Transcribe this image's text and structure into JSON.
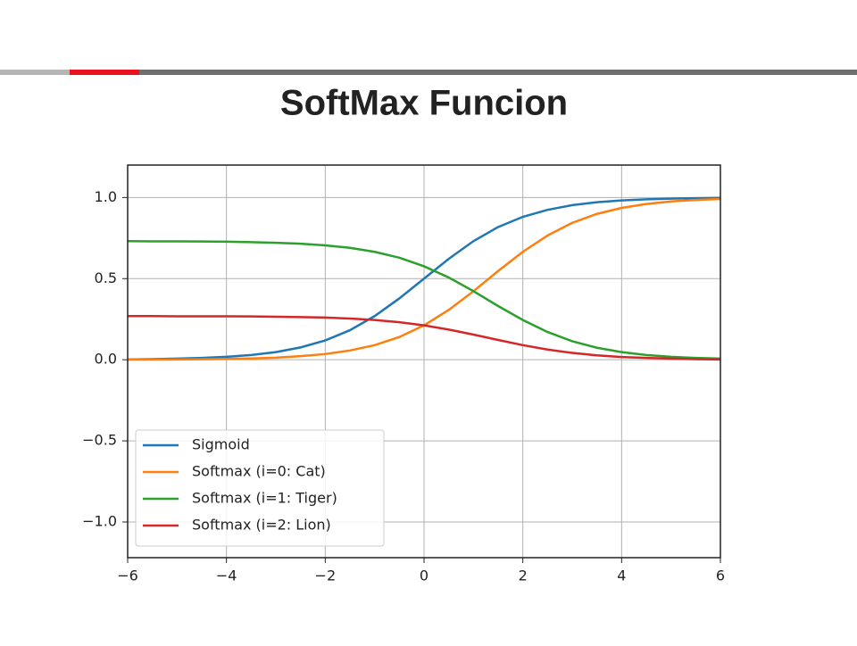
{
  "chart_data": {
    "type": "line",
    "title": "SoftMax Funcion",
    "x": [
      -6,
      -5.5,
      -5,
      -4.5,
      -4,
      -3.5,
      -3,
      -2.5,
      -2,
      -1.5,
      -1,
      -0.5,
      0,
      0.5,
      1,
      1.5,
      2,
      2.5,
      3,
      3.5,
      4,
      4.5,
      5,
      5.5,
      6
    ],
    "series": [
      {
        "name": "Sigmoid",
        "color": "#1f77b4",
        "values": [
          0.002,
          0.004,
          0.007,
          0.011,
          0.018,
          0.029,
          0.047,
          0.076,
          0.119,
          0.182,
          0.269,
          0.378,
          0.5,
          0.622,
          0.731,
          0.818,
          0.881,
          0.924,
          0.953,
          0.971,
          0.982,
          0.989,
          0.993,
          0.996,
          0.998
        ]
      },
      {
        "name": "Softmax (i=0: Cat)",
        "color": "#ff7f0e",
        "values": [
          0.001,
          0.001,
          0.002,
          0.003,
          0.005,
          0.008,
          0.013,
          0.022,
          0.035,
          0.057,
          0.09,
          0.14,
          0.212,
          0.307,
          0.422,
          0.547,
          0.665,
          0.766,
          0.844,
          0.899,
          0.936,
          0.96,
          0.976,
          0.985,
          0.991
        ]
      },
      {
        "name": "Softmax (i=1: Tiger)",
        "color": "#2ca02c",
        "values": [
          0.731,
          0.73,
          0.73,
          0.729,
          0.728,
          0.725,
          0.721,
          0.715,
          0.705,
          0.69,
          0.665,
          0.629,
          0.576,
          0.507,
          0.423,
          0.331,
          0.245,
          0.171,
          0.114,
          0.074,
          0.047,
          0.029,
          0.018,
          0.011,
          0.007
        ]
      },
      {
        "name": "Softmax (i=2: Lion)",
        "color": "#d62728",
        "values": [
          0.269,
          0.269,
          0.268,
          0.268,
          0.268,
          0.267,
          0.265,
          0.263,
          0.26,
          0.254,
          0.245,
          0.231,
          0.212,
          0.186,
          0.155,
          0.122,
          0.09,
          0.063,
          0.042,
          0.027,
          0.017,
          0.011,
          0.007,
          0.004,
          0.002
        ]
      }
    ],
    "xlim": [
      -6,
      6
    ],
    "xticks": [
      {
        "value": -6,
        "label": "−6"
      },
      {
        "value": -4,
        "label": "−4"
      },
      {
        "value": -2,
        "label": "−2"
      },
      0,
      2,
      4,
      6
    ],
    "ylim": [
      -1.22,
      1.2
    ],
    "yticks": [
      {
        "value": -1,
        "label": "−1.0"
      },
      {
        "value": -0.5,
        "label": "−0.5"
      },
      {
        "value": 0,
        "label": "0.0"
      },
      0.5,
      {
        "value": 1,
        "label": "1.0"
      }
    ],
    "grid": true,
    "legend": "lower left"
  }
}
